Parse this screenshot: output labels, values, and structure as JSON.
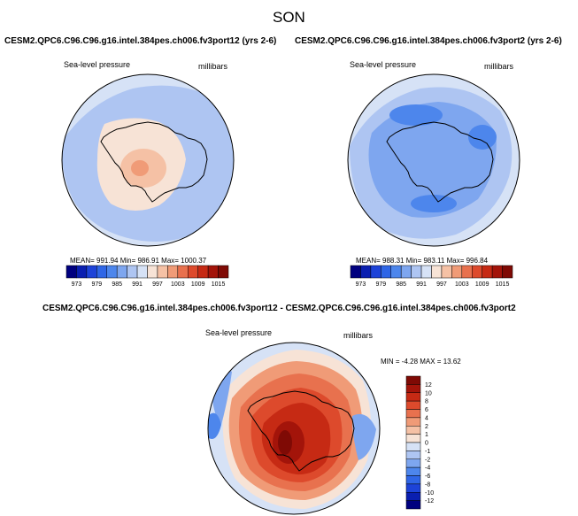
{
  "title": "SON",
  "panel1": {
    "case": "CESM2.QPC6.C96.C96.g16.intel.384pes.ch006.fv3port12 (yrs 2-6)",
    "variable": "Sea-level pressure",
    "units": "millibars",
    "stats": "MEAN= 991.94  Min= 986.91  Max= 1000.37"
  },
  "panel2": {
    "case": "CESM2.QPC6.C96.C96.g16.intel.384pes.ch006.fv3port2 (yrs 2-6)",
    "variable": "Sea-level pressure",
    "units": "millibars",
    "stats": "MEAN= 988.31  Min= 983.11  Max= 996.84"
  },
  "panel3": {
    "case": "CESM2.QPC6.C96.C96.g16.intel.384pes.ch006.fv3port12 - CESM2.QPC6.C96.C96.g16.intel.384pes.ch006.fv3port2",
    "variable": "Sea-level pressure",
    "units": "millibars",
    "stats": "MIN =  -4.28 MAX =  13.62"
  },
  "colorbar_abs": {
    "labels": [
      "973",
      "979",
      "985",
      "991",
      "997",
      "1003",
      "1009",
      "1015"
    ],
    "colors": [
      "#00007f",
      "#0a1fb0",
      "#1d43d8",
      "#2f66e6",
      "#4d86ec",
      "#7ea6ef",
      "#aec5f2",
      "#d6e2f6",
      "#f7e3d6",
      "#f5c1a5",
      "#f09b77",
      "#e8714e",
      "#dd4a2c",
      "#c62a14",
      "#a3140a",
      "#7f0a05"
    ]
  },
  "colorbar_diff": {
    "labels": [
      "12",
      "10",
      "8",
      "6",
      "4",
      "2",
      "1",
      "0",
      "-1",
      "-2",
      "-4",
      "-6",
      "-8",
      "-10",
      "-12"
    ],
    "colors": [
      "#7f0a05",
      "#a3140a",
      "#c62a14",
      "#dd4a2c",
      "#e8714e",
      "#f09b77",
      "#f5c1a5",
      "#f7e3d6",
      "#d6e2f6",
      "#aec5f2",
      "#7ea6ef",
      "#4d86ec",
      "#2f66e6",
      "#1d43d8",
      "#0a1fb0",
      "#00007f"
    ]
  }
}
